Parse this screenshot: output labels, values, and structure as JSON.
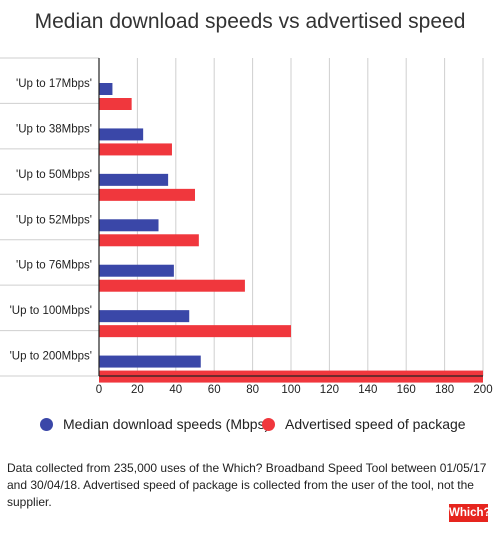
{
  "chart_data": {
    "type": "bar",
    "orientation": "horizontal",
    "title": "Median download speeds vs advertised speed",
    "categories": [
      "'Up to 17Mbps'",
      "'Up to 38Mbps'",
      "'Up to 50Mbps'",
      "'Up to 52Mbps'",
      "'Up to 76Mbps'",
      "'Up to 100Mbps'",
      "'Up to 200Mbps'"
    ],
    "series": [
      {
        "name": "Median download speeds (Mbps)",
        "color": "#3a47a8",
        "values": [
          7,
          23,
          36,
          31,
          39,
          47,
          53
        ]
      },
      {
        "name": "Advertised speed of package",
        "color": "#f0373d",
        "values": [
          17,
          38,
          50,
          52,
          76,
          100,
          200
        ]
      }
    ],
    "xlim": [
      0,
      200
    ],
    "xticks": [
      "0",
      "20",
      "40",
      "60",
      "80",
      "100",
      "120",
      "140",
      "160",
      "180",
      "200"
    ],
    "grid": true,
    "legend_position": "bottom"
  },
  "footnote": "Data collected from 235,000 uses of the Which? Broadband Speed Tool between 01/05/17 and 30/04/18. Advertised speed of package is collected from the user of the tool, not the supplier.",
  "logo_text": "Which?"
}
